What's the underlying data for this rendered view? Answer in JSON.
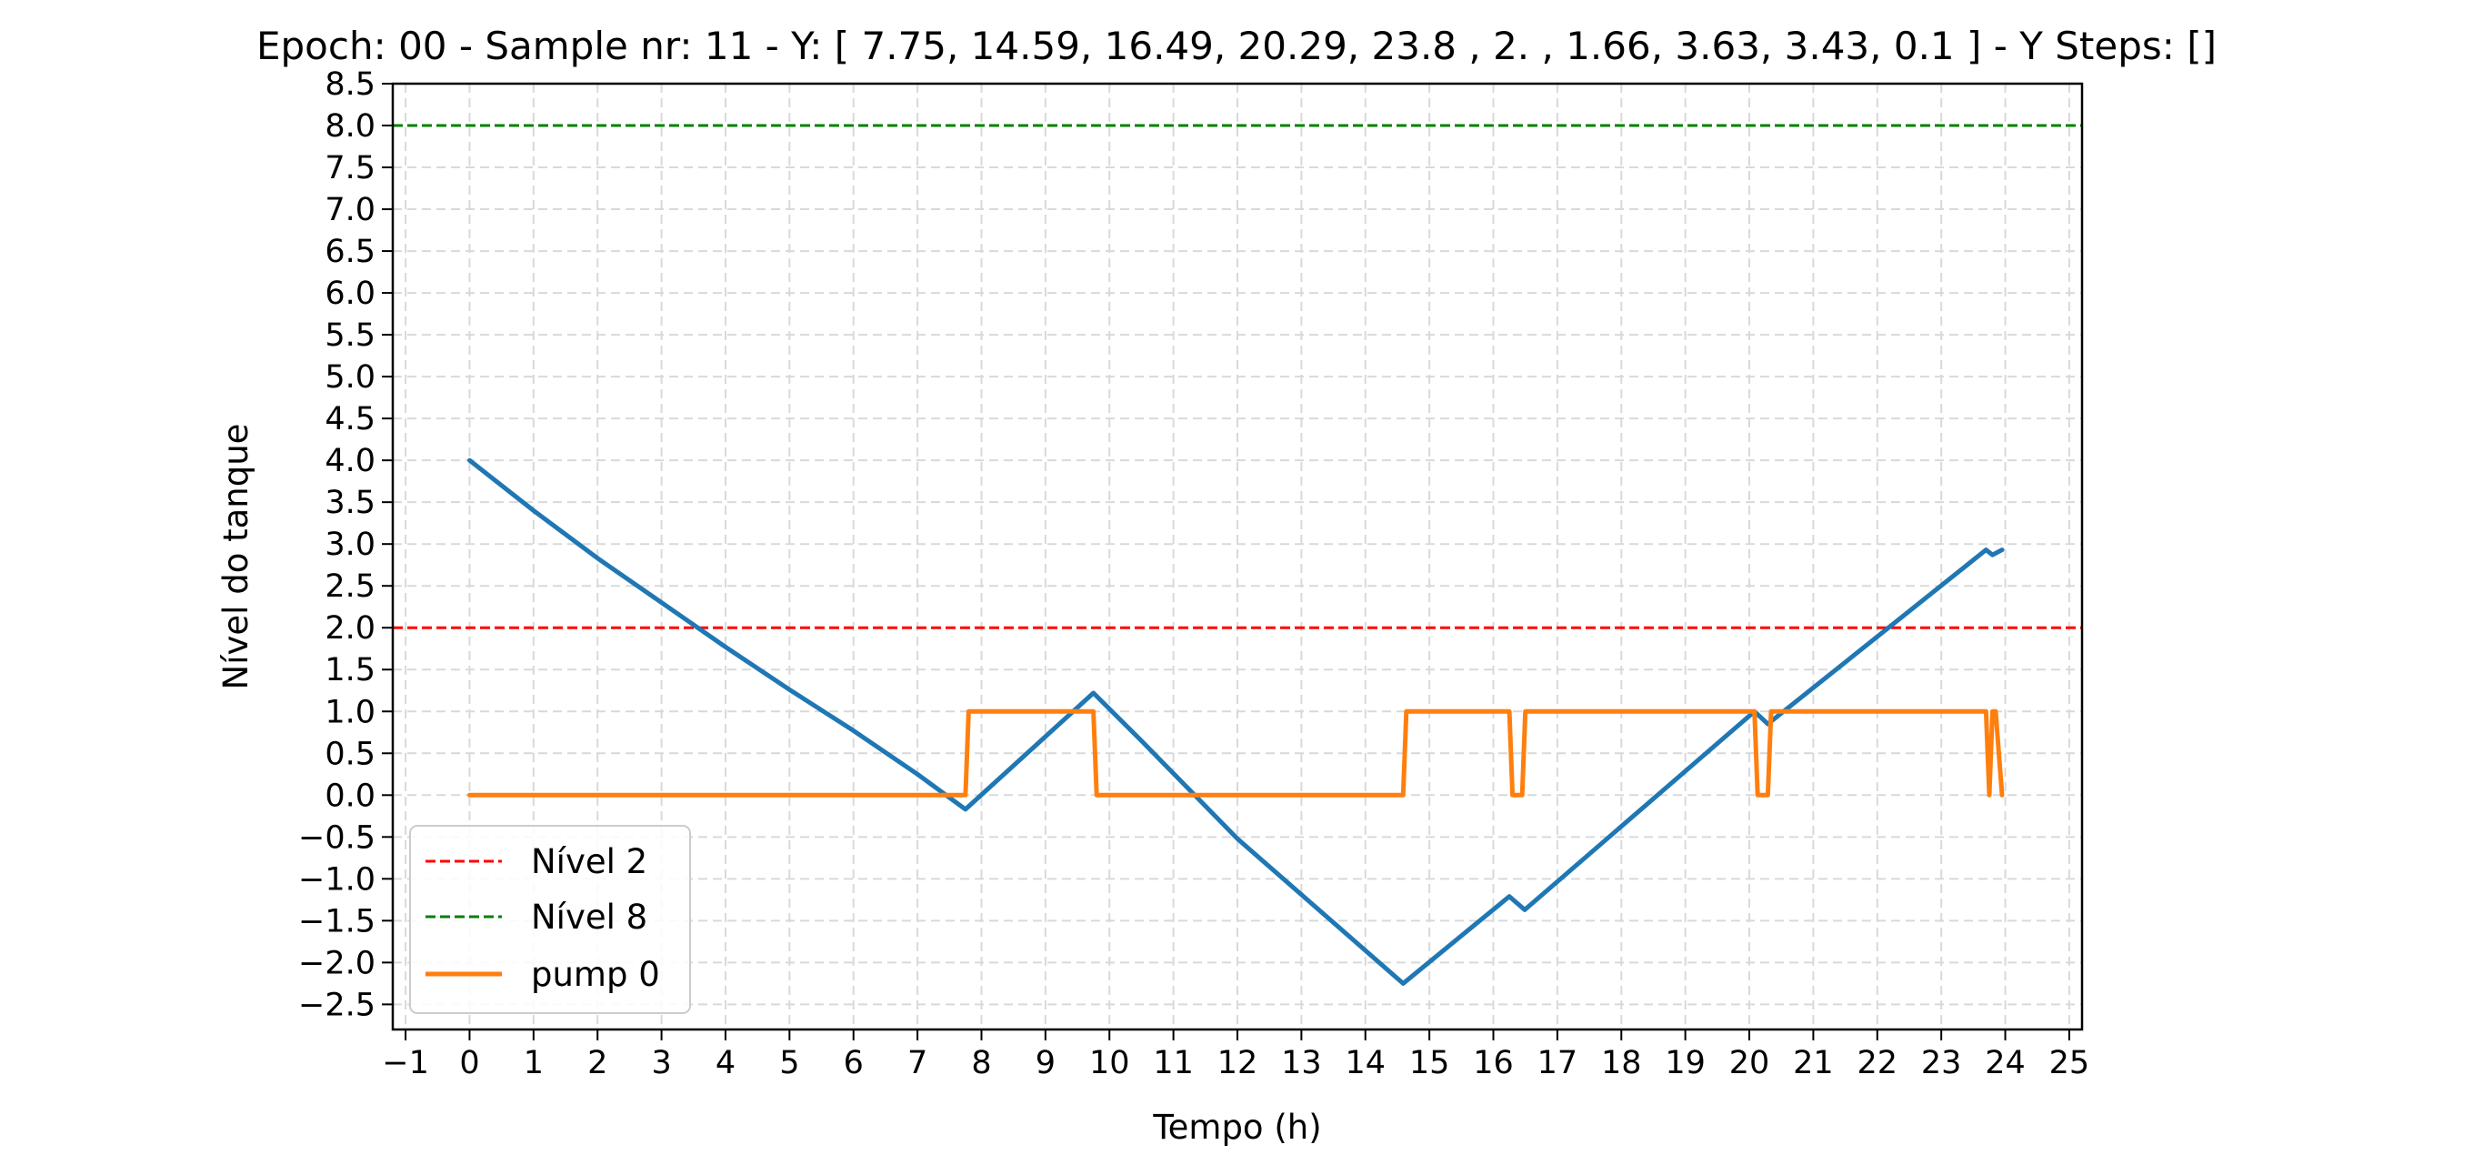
{
  "chart_data": {
    "type": "line",
    "title": "Epoch: 00 - Sample nr: 11 - Y: [ 7.75, 14.59, 16.49, 20.29, 23.8 ,  2.  ,  1.66,  3.63,  3.43,  0.1 ] - Y Steps: []",
    "xlabel": "Tempo (h)",
    "ylabel": "Nível do tanque",
    "xlim": [
      -1.2,
      25.2
    ],
    "ylim": [
      -2.8,
      8.5
    ],
    "xticks": [
      -1,
      0,
      1,
      2,
      3,
      4,
      5,
      6,
      7,
      8,
      9,
      10,
      11,
      12,
      13,
      14,
      15,
      16,
      17,
      18,
      19,
      20,
      21,
      22,
      23,
      24,
      25
    ],
    "yticks": [
      -2.5,
      -2.0,
      -1.5,
      -1.0,
      -0.5,
      0.0,
      0.5,
      1.0,
      1.5,
      2.0,
      2.5,
      3.0,
      3.5,
      4.0,
      4.5,
      5.0,
      5.5,
      6.0,
      6.5,
      7.0,
      7.5,
      8.0,
      8.5
    ],
    "grid": true,
    "legend_position": "lower-left",
    "colors": {
      "level": "#1f77b4",
      "pump": "#ff7f0e",
      "nivel2": "#ff0000",
      "nivel8": "#008000",
      "grid": "#d9d9d9"
    },
    "reference_lines": [
      {
        "name": "Nível 2",
        "y": 2.0,
        "color": "#ff0000",
        "style": "dashed"
      },
      {
        "name": "Nível 8",
        "y": 8.0,
        "color": "#008000",
        "style": "dashed"
      }
    ],
    "series": [
      {
        "name": "",
        "color": "#1f77b4",
        "x": [
          0,
          1,
          2,
          3,
          4,
          5,
          6,
          7,
          7.75,
          9.75,
          10.5,
          12,
          14.59,
          16.25,
          16.49,
          20.08,
          20.29,
          23.7,
          23.8,
          23.95
        ],
        "y": [
          4.0,
          3.4,
          2.83,
          2.3,
          1.77,
          1.26,
          0.77,
          0.25,
          -0.17,
          1.22,
          0.65,
          -0.52,
          -2.25,
          -1.21,
          -1.37,
          1.0,
          0.85,
          2.93,
          2.87,
          2.93
        ]
      },
      {
        "name": "pump 0",
        "color": "#ff7f0e",
        "x": [
          0,
          7.75,
          7.8,
          9.75,
          9.8,
          14.59,
          14.64,
          16.25,
          16.3,
          16.45,
          16.5,
          20.08,
          20.13,
          20.29,
          20.34,
          23.7,
          23.75,
          23.8,
          23.85,
          23.95
        ],
        "y": [
          0,
          0,
          1,
          1,
          0,
          0,
          1,
          1,
          0,
          0,
          1,
          1,
          0,
          0,
          1,
          1,
          0,
          1,
          1,
          0
        ]
      }
    ],
    "legend": [
      {
        "label": "Nível 2",
        "color": "#ff0000",
        "style": "dashed"
      },
      {
        "label": "Nível 8",
        "color": "#008000",
        "style": "dashed"
      },
      {
        "label": "pump 0",
        "color": "#ff7f0e",
        "style": "solid"
      }
    ]
  }
}
